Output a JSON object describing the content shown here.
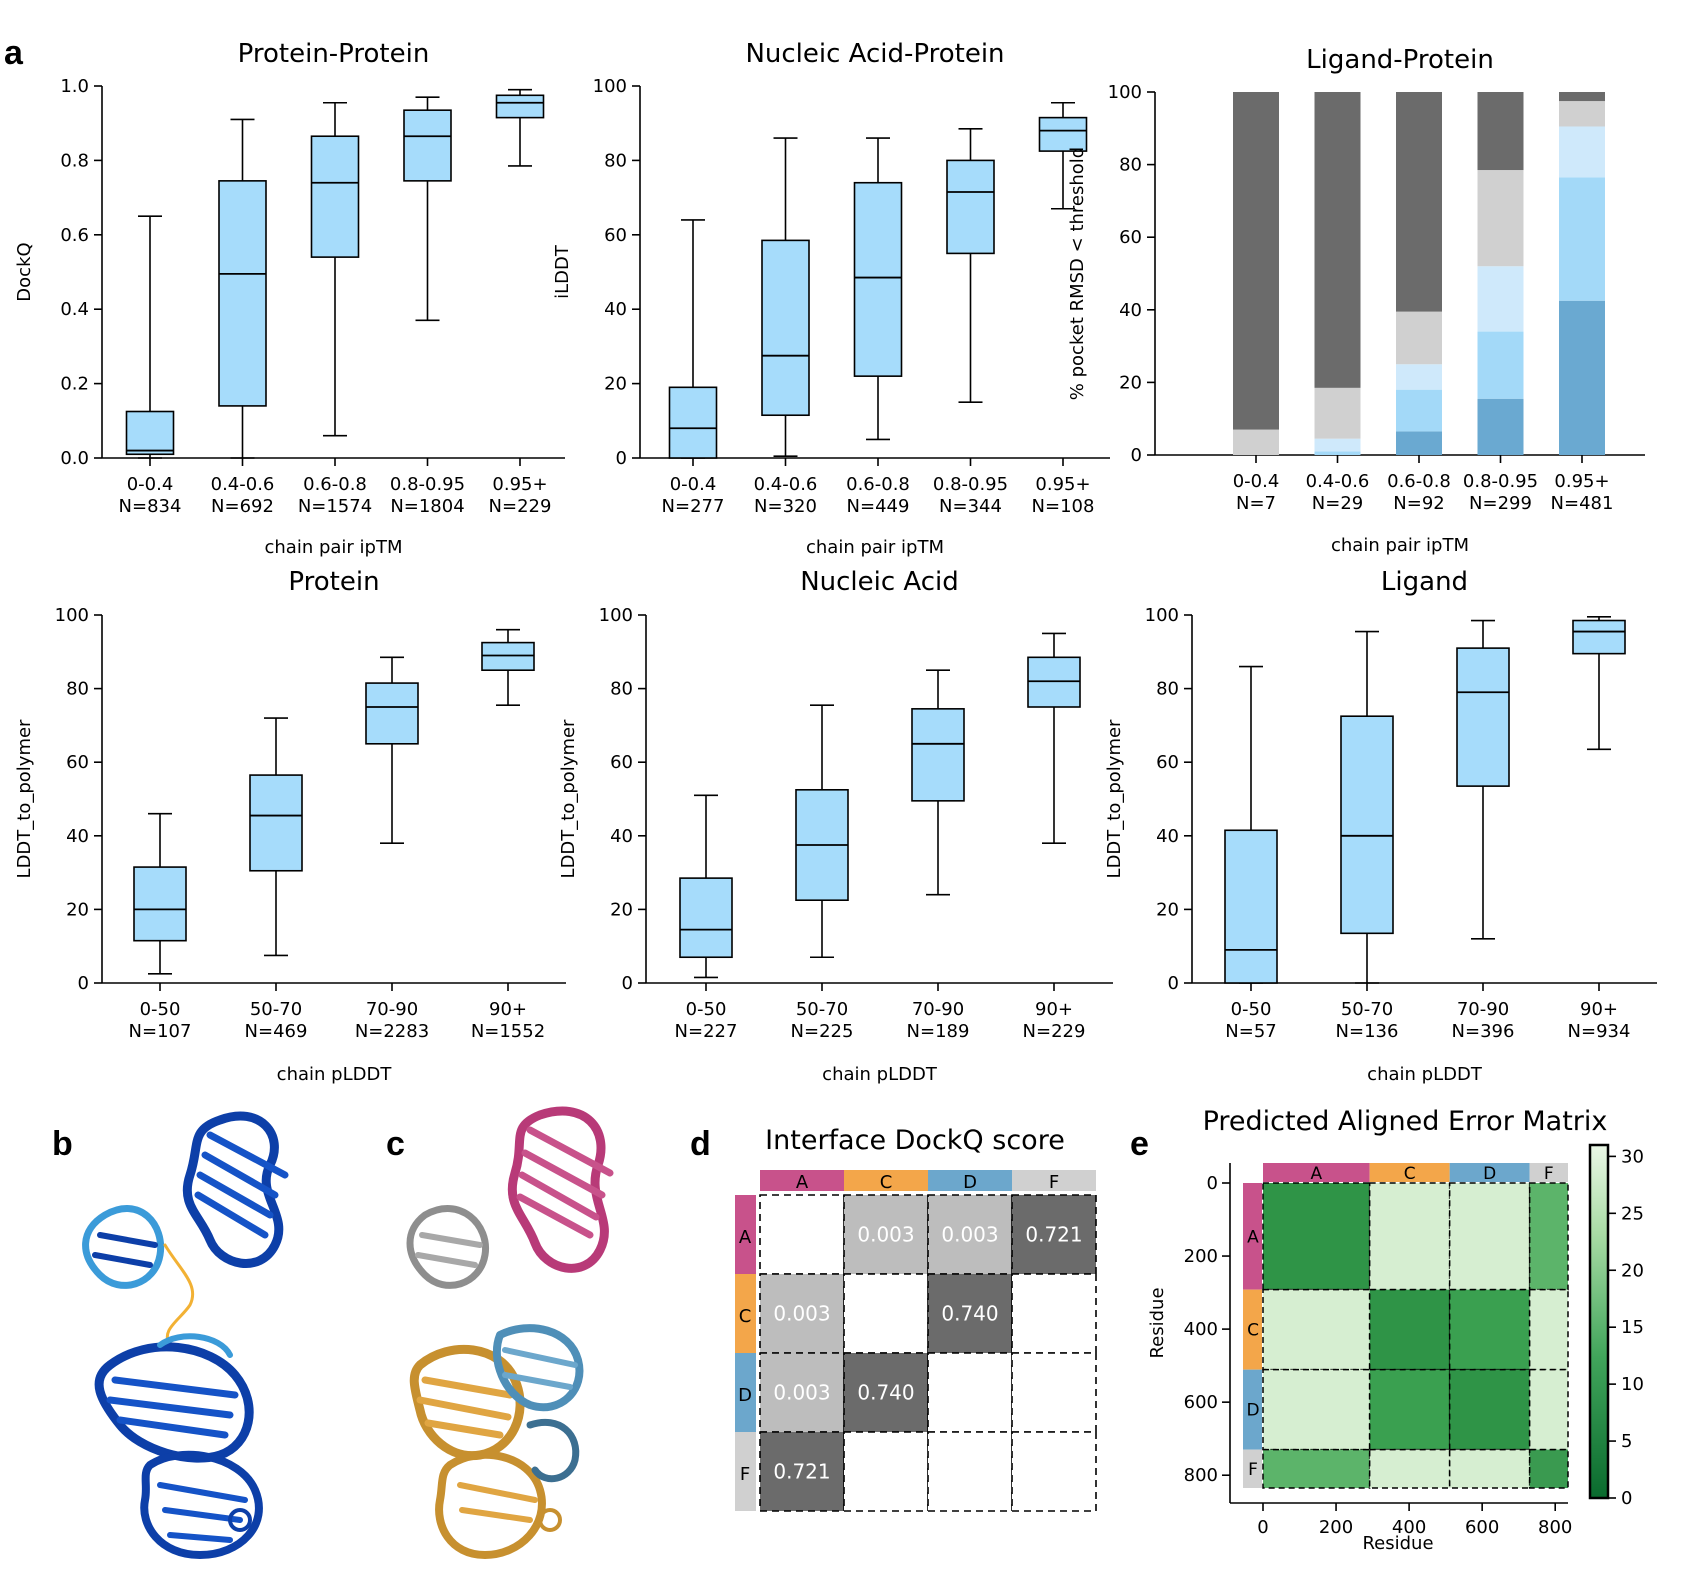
{
  "panel_letters": [
    "a",
    "b",
    "c",
    "d",
    "e"
  ],
  "colors": {
    "box_fill": "#a6dcfb",
    "dark_gray": "#6b6b6b",
    "light_gray": "#d0d0d0",
    "blue_lightest": "#cfe9fb",
    "blue_light": "#a3d9f8",
    "blue_mid": "#6aa9d1",
    "chain_A": "#c8528b",
    "chain_C": "#f3a64a",
    "chain_D": "#6ca7cc",
    "chain_F": "#d0d0d0"
  },
  "chart_data": [
    {
      "type": "box",
      "title": "Protein-Protein",
      "xlabel": "chain pair ipTM",
      "ylabel": "DockQ",
      "ylim": [
        0,
        1.0
      ],
      "yticks": [
        "0.0",
        "0.2",
        "0.4",
        "0.6",
        "0.8",
        "1.0"
      ],
      "categories": [
        {
          "label": "0-0.4",
          "n": "N=834",
          "whislo": 0.0,
          "q1": 0.01,
          "med": 0.02,
          "q3": 0.125,
          "whishi": 0.65
        },
        {
          "label": "0.4-0.6",
          "n": "N=692",
          "whislo": 0.0,
          "q1": 0.14,
          "med": 0.495,
          "q3": 0.745,
          "whishi": 0.91
        },
        {
          "label": "0.6-0.8",
          "n": "N=1574",
          "whislo": 0.06,
          "q1": 0.54,
          "med": 0.74,
          "q3": 0.865,
          "whishi": 0.955
        },
        {
          "label": "0.8-0.95",
          "n": "N=1804",
          "whislo": 0.37,
          "q1": 0.745,
          "med": 0.865,
          "q3": 0.935,
          "whishi": 0.97
        },
        {
          "label": "0.95+",
          "n": "N=229",
          "whislo": 0.785,
          "q1": 0.915,
          "med": 0.955,
          "q3": 0.975,
          "whishi": 0.99
        }
      ]
    },
    {
      "type": "box",
      "title": "Nucleic Acid-Protein",
      "xlabel": "chain pair ipTM",
      "ylabel": "iLDDT",
      "ylim": [
        0,
        100
      ],
      "yticks": [
        "0",
        "20",
        "40",
        "60",
        "80",
        "100"
      ],
      "categories": [
        {
          "label": "0-0.4",
          "n": "N=277",
          "whislo": 0,
          "q1": 0,
          "med": 8,
          "q3": 19,
          "whishi": 64
        },
        {
          "label": "0.4-0.6",
          "n": "N=320",
          "whislo": 0.5,
          "q1": 11.5,
          "med": 27.5,
          "q3": 58.5,
          "whishi": 86
        },
        {
          "label": "0.6-0.8",
          "n": "N=449",
          "whislo": 5,
          "q1": 22,
          "med": 48.5,
          "q3": 74,
          "whishi": 86
        },
        {
          "label": "0.8-0.95",
          "n": "N=344",
          "whislo": 15,
          "q1": 55,
          "med": 71.5,
          "q3": 80,
          "whishi": 88.5
        },
        {
          "label": "0.95+",
          "n": "N=108",
          "whislo": 67,
          "q1": 82.5,
          "med": 88,
          "q3": 91.5,
          "whishi": 95.5
        }
      ]
    },
    {
      "type": "stacked_bar",
      "title": "Ligand-Protein",
      "xlabel": "chain pair ipTM",
      "ylabel": "% pocket RMSD < threshold",
      "ylim": [
        0,
        100
      ],
      "yticks": [
        "0",
        "20",
        "40",
        "60",
        "80",
        "100"
      ],
      "categories": [
        "0-0.4",
        "0.4-0.6",
        "0.6-0.8",
        "0.8-0.95",
        "0.95+"
      ],
      "counts": [
        "N=7",
        "N=29",
        "N=92",
        "N=299",
        "N=481"
      ],
      "series_colors": [
        "#6aa9d1",
        "#a3d9f8",
        "#cfe9fb",
        "#d0d0d0",
        "#6b6b6b"
      ],
      "segments": [
        [
          0,
          0,
          0,
          7,
          93
        ],
        [
          0,
          1,
          3.5,
          14,
          81.5
        ],
        [
          6.5,
          11.5,
          7,
          14.5,
          60.5
        ],
        [
          15.5,
          18.5,
          18,
          26.5,
          21.5
        ],
        [
          42.5,
          34,
          14,
          7,
          2.5
        ]
      ]
    },
    {
      "type": "box",
      "title": "Protein",
      "xlabel": "chain pLDDT",
      "ylabel": "LDDT_to_polymer",
      "ylim": [
        0,
        100
      ],
      "yticks": [
        "0",
        "20",
        "40",
        "60",
        "80",
        "100"
      ],
      "categories": [
        {
          "label": "0-50",
          "n": "N=107",
          "whislo": 2.5,
          "q1": 11.5,
          "med": 20,
          "q3": 31.5,
          "whishi": 46
        },
        {
          "label": "50-70",
          "n": "N=469",
          "whislo": 7.5,
          "q1": 30.5,
          "med": 45.5,
          "q3": 56.5,
          "whishi": 72
        },
        {
          "label": "70-90",
          "n": "N=2283",
          "whislo": 38,
          "q1": 65,
          "med": 75,
          "q3": 81.5,
          "whishi": 88.5
        },
        {
          "label": "90+",
          "n": "N=1552",
          "whislo": 75.5,
          "q1": 85,
          "med": 89,
          "q3": 92.5,
          "whishi": 96
        }
      ]
    },
    {
      "type": "box",
      "title": "Nucleic Acid",
      "xlabel": "chain pLDDT",
      "ylabel": "LDDT_to_polymer",
      "ylim": [
        0,
        100
      ],
      "yticks": [
        "0",
        "20",
        "40",
        "60",
        "80",
        "100"
      ],
      "categories": [
        {
          "label": "0-50",
          "n": "N=227",
          "whislo": 1.5,
          "q1": 7,
          "med": 14.5,
          "q3": 28.5,
          "whishi": 51
        },
        {
          "label": "50-70",
          "n": "N=225",
          "whislo": 7,
          "q1": 22.5,
          "med": 37.5,
          "q3": 52.5,
          "whishi": 75.5
        },
        {
          "label": "70-90",
          "n": "N=189",
          "whislo": 24,
          "q1": 49.5,
          "med": 65,
          "q3": 74.5,
          "whishi": 85
        },
        {
          "label": "90+",
          "n": "N=229",
          "whislo": 38,
          "q1": 75,
          "med": 82,
          "q3": 88.5,
          "whishi": 95
        }
      ]
    },
    {
      "type": "box",
      "title": "Ligand",
      "xlabel": "chain pLDDT",
      "ylabel": "LDDT_to_polymer",
      "ylim": [
        0,
        100
      ],
      "yticks": [
        "0",
        "20",
        "40",
        "60",
        "80",
        "100"
      ],
      "categories": [
        {
          "label": "0-50",
          "n": "N=57",
          "whislo": 0,
          "q1": 0,
          "med": 9,
          "q3": 41.5,
          "whishi": 86
        },
        {
          "label": "50-70",
          "n": "N=136",
          "whislo": 0,
          "q1": 13.5,
          "med": 40,
          "q3": 72.5,
          "whishi": 95.5
        },
        {
          "label": "70-90",
          "n": "N=396",
          "whislo": 12,
          "q1": 53.5,
          "med": 79,
          "q3": 91,
          "whishi": 98.5
        },
        {
          "label": "90+",
          "n": "N=934",
          "whislo": 63.5,
          "q1": 89.5,
          "med": 95.5,
          "q3": 98.5,
          "whishi": 99.5
        }
      ]
    },
    {
      "type": "heatmap",
      "title": "Interface DockQ score",
      "chains": [
        "A",
        "C",
        "D",
        "F"
      ],
      "chain_colors": [
        "#c8528b",
        "#f3a64a",
        "#6ca7cc",
        "#d0d0d0"
      ],
      "cells": [
        [
          "",
          "0.003",
          "0.003",
          "0.721"
        ],
        [
          "0.003",
          "",
          "0.740",
          ""
        ],
        [
          "0.003",
          "0.740",
          "",
          ""
        ],
        [
          "0.721",
          "",
          "",
          ""
        ]
      ]
    },
    {
      "type": "heatmap",
      "title": "Predicted Aligned Error Matrix",
      "xlabel": "Residue",
      "ylabel": "Residue",
      "chains": [
        "A",
        "C",
        "D",
        "F"
      ],
      "chain_lengths": [
        292,
        219,
        219,
        105
      ],
      "xticks": [
        "0",
        "200",
        "400",
        "600",
        "800"
      ],
      "yticks": [
        "0",
        "200",
        "400",
        "600",
        "800"
      ],
      "colorbar_ticks": [
        "0",
        "5",
        "10",
        "15",
        "20",
        "25",
        "30"
      ],
      "colorbar_range": [
        0,
        31
      ]
    }
  ]
}
